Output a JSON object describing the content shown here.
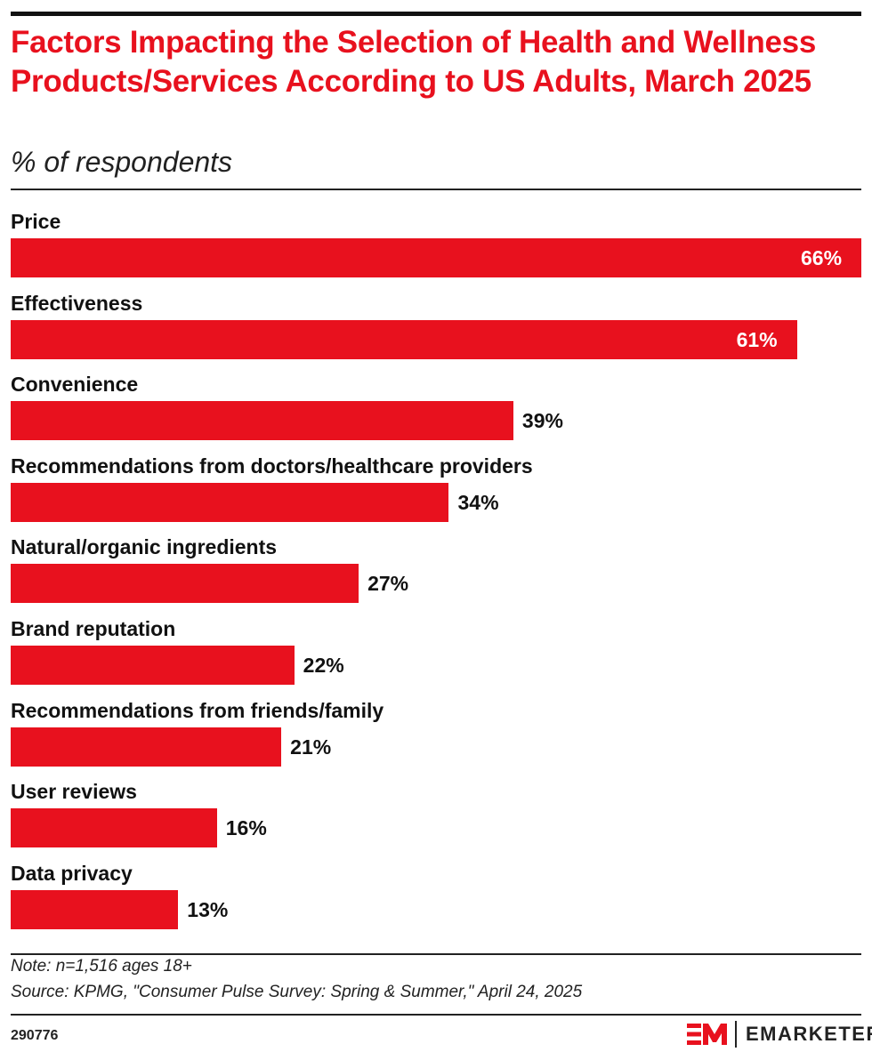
{
  "header": {
    "title": "Factors Impacting the Selection of Health and Wellness Products/Services According to US Adults, March 2025",
    "subtitle": "% of respondents"
  },
  "chart_data": {
    "type": "bar",
    "orientation": "horizontal",
    "title": "Factors Impacting the Selection of Health and Wellness Products/Services According to US Adults, March 2025",
    "subtitle": "% of respondents",
    "categories": [
      "Price",
      "Effectiveness",
      "Convenience",
      "Recommendations from doctors/healthcare providers",
      "Natural/organic ingredients",
      "Brand reputation",
      "Recommendations from friends/family",
      "User reviews",
      "Data privacy"
    ],
    "values": [
      66,
      61,
      39,
      34,
      27,
      22,
      21,
      16,
      13
    ],
    "value_labels": [
      "66%",
      "61%",
      "39%",
      "34%",
      "27%",
      "22%",
      "21%",
      "16%",
      "13%"
    ],
    "xlim": [
      0,
      66
    ],
    "bar_color": "#e8111e"
  },
  "footer": {
    "note": "Note: n=1,516 ages 18+",
    "source": "Source: KPMG, \"Consumer Pulse Survey: Spring & Summer,\" April 24, 2025",
    "chart_id": "290776",
    "brand": "EMARKETER",
    "brand_mark": "EM"
  }
}
